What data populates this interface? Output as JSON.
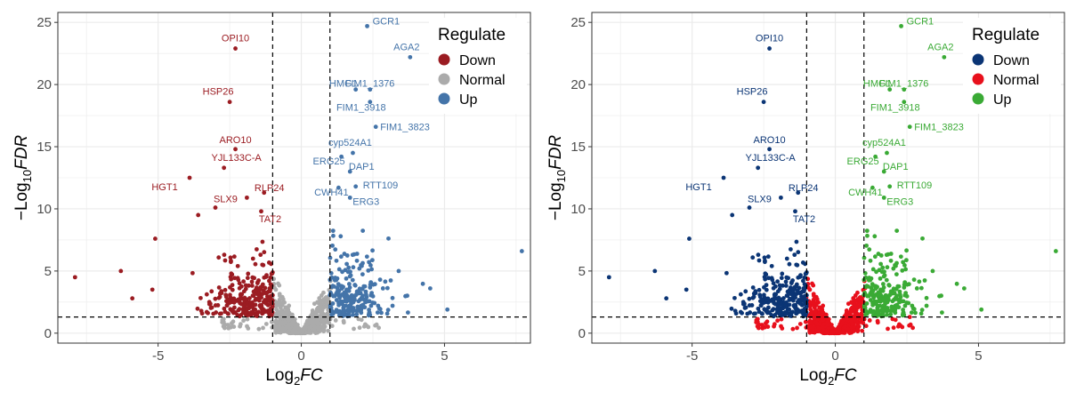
{
  "chart_data": [
    {
      "type": "scatter",
      "xlabel": "Log2FC",
      "ylabel": "-Log10FDR",
      "xlim": [
        -8.5,
        8.0
      ],
      "ylim": [
        -0.8,
        25.8
      ],
      "xticks": [
        "-5",
        "0",
        "5"
      ],
      "yticks": [
        "0",
        "5",
        "10",
        "15",
        "20",
        "25"
      ],
      "grid": true,
      "thresholds": {
        "fc": 1,
        "fdr_line": 1.3
      },
      "legend": {
        "title": "Regulate",
        "placement": "top-right",
        "entries": [
          {
            "label": "Down",
            "color": "#9B1C22"
          },
          {
            "label": "Normal",
            "color": "#ABABAB"
          },
          {
            "label": "Up",
            "color": "#4474A9"
          }
        ]
      },
      "genes": [
        {
          "name": "GCR1",
          "x": 2.3,
          "y": 24.7,
          "group": "Up"
        },
        {
          "name": "AGA2",
          "x": 3.8,
          "y": 22.2,
          "group": "Up"
        },
        {
          "name": "HMG1",
          "x": 1.9,
          "y": 19.6,
          "group": "Up"
        },
        {
          "name": "FIM1_1376",
          "x": 2.4,
          "y": 19.6,
          "group": "Up"
        },
        {
          "name": "FIM1_3918",
          "x": 2.4,
          "y": 18.6,
          "group": "Up"
        },
        {
          "name": "FIM1_3823",
          "x": 2.6,
          "y": 16.6,
          "group": "Up"
        },
        {
          "name": "cyp524A1",
          "x": 1.8,
          "y": 14.5,
          "group": "Up"
        },
        {
          "name": "ERG25",
          "x": 1.4,
          "y": 14.2,
          "group": "Up"
        },
        {
          "name": "DAP1",
          "x": 1.7,
          "y": 13.0,
          "group": "Up"
        },
        {
          "name": "RTT109",
          "x": 1.9,
          "y": 11.8,
          "group": "Up"
        },
        {
          "name": "CWH41",
          "x": 1.3,
          "y": 11.7,
          "group": "Up"
        },
        {
          "name": "ERG3",
          "x": 1.7,
          "y": 10.9,
          "group": "Up"
        },
        {
          "name": "OPI10",
          "x": -2.3,
          "y": 22.9,
          "group": "Down"
        },
        {
          "name": "HSP26",
          "x": -2.5,
          "y": 18.6,
          "group": "Down"
        },
        {
          "name": "ARO10",
          "x": -2.3,
          "y": 14.8,
          "group": "Down"
        },
        {
          "name": "YJL133C-A",
          "x": -2.7,
          "y": 13.3,
          "group": "Down"
        },
        {
          "name": "HGT1",
          "x": -3.9,
          "y": 12.5,
          "group": "Down"
        },
        {
          "name": "RLP24",
          "x": -1.3,
          "y": 11.3,
          "group": "Down"
        },
        {
          "name": "SLX9",
          "x": -1.9,
          "y": 10.9,
          "group": "Down"
        },
        {
          "name": "TAT2",
          "x": -1.4,
          "y": 9.8,
          "group": "Down"
        }
      ],
      "extra_points": [
        {
          "x": 7.7,
          "y": 6.6,
          "group": "Up"
        },
        {
          "x": 5.1,
          "y": 1.9,
          "group": "Up"
        },
        {
          "x": 3.4,
          "y": 5.0,
          "group": "Up"
        },
        {
          "x": 4.5,
          "y": 3.6,
          "group": "Up"
        },
        {
          "x": -7.9,
          "y": 4.5,
          "group": "Down"
        },
        {
          "x": -6.3,
          "y": 5.0,
          "group": "Down"
        },
        {
          "x": -5.9,
          "y": 2.8,
          "group": "Down"
        },
        {
          "x": -5.2,
          "y": 3.5,
          "group": "Down"
        },
        {
          "x": -5.1,
          "y": 7.6,
          "group": "Down"
        },
        {
          "x": -3.6,
          "y": 9.5,
          "group": "Down"
        },
        {
          "x": -3.0,
          "y": 10.1,
          "group": "Down"
        }
      ],
      "clouds": {
        "down_count": 260,
        "normal_count": 650,
        "up_count": 230
      }
    },
    {
      "type": "scatter",
      "xlabel": "Log2FC",
      "ylabel": "-Log10FDR",
      "xlim": [
        -8.5,
        8.0
      ],
      "ylim": [
        -0.8,
        25.8
      ],
      "xticks": [
        "-5",
        "0",
        "5"
      ],
      "yticks": [
        "0",
        "5",
        "10",
        "15",
        "20",
        "25"
      ],
      "grid": true,
      "thresholds": {
        "fc": 1,
        "fdr_line": 1.3
      },
      "legend": {
        "title": "Regulate",
        "placement": "top-right",
        "entries": [
          {
            "label": "Down",
            "color": "#0B3575"
          },
          {
            "label": "Normal",
            "color": "#E8101C"
          },
          {
            "label": "Up",
            "color": "#3AAA35"
          }
        ]
      },
      "genes": [
        {
          "name": "GCR1",
          "x": 2.3,
          "y": 24.7,
          "group": "Up"
        },
        {
          "name": "AGA2",
          "x": 3.8,
          "y": 22.2,
          "group": "Up"
        },
        {
          "name": "HMG1",
          "x": 1.9,
          "y": 19.6,
          "group": "Up"
        },
        {
          "name": "FIM1_1376",
          "x": 2.4,
          "y": 19.6,
          "group": "Up"
        },
        {
          "name": "FIM1_3918",
          "x": 2.4,
          "y": 18.6,
          "group": "Up"
        },
        {
          "name": "FIM1_3823",
          "x": 2.6,
          "y": 16.6,
          "group": "Up"
        },
        {
          "name": "cyp524A1",
          "x": 1.8,
          "y": 14.5,
          "group": "Up"
        },
        {
          "name": "ERG25",
          "x": 1.4,
          "y": 14.2,
          "group": "Up"
        },
        {
          "name": "DAP1",
          "x": 1.7,
          "y": 13.0,
          "group": "Up"
        },
        {
          "name": "RTT109",
          "x": 1.9,
          "y": 11.8,
          "group": "Up"
        },
        {
          "name": "CWH41",
          "x": 1.3,
          "y": 11.7,
          "group": "Up"
        },
        {
          "name": "ERG3",
          "x": 1.7,
          "y": 10.9,
          "group": "Up"
        },
        {
          "name": "OPI10",
          "x": -2.3,
          "y": 22.9,
          "group": "Down"
        },
        {
          "name": "HSP26",
          "x": -2.5,
          "y": 18.6,
          "group": "Down"
        },
        {
          "name": "ARO10",
          "x": -2.3,
          "y": 14.8,
          "group": "Down"
        },
        {
          "name": "YJL133C-A",
          "x": -2.7,
          "y": 13.3,
          "group": "Down"
        },
        {
          "name": "HGT1",
          "x": -3.9,
          "y": 12.5,
          "group": "Down"
        },
        {
          "name": "RLP24",
          "x": -1.3,
          "y": 11.3,
          "group": "Down"
        },
        {
          "name": "SLX9",
          "x": -1.9,
          "y": 10.9,
          "group": "Down"
        },
        {
          "name": "TAT2",
          "x": -1.4,
          "y": 9.8,
          "group": "Down"
        }
      ],
      "extra_points": [
        {
          "x": 7.7,
          "y": 6.6,
          "group": "Up"
        },
        {
          "x": 5.1,
          "y": 1.9,
          "group": "Up"
        },
        {
          "x": 3.4,
          "y": 5.0,
          "group": "Up"
        },
        {
          "x": 4.5,
          "y": 3.6,
          "group": "Up"
        },
        {
          "x": 2.6,
          "y": 1.3,
          "group": "Normal"
        },
        {
          "x": -7.9,
          "y": 4.5,
          "group": "Down"
        },
        {
          "x": -6.3,
          "y": 5.0,
          "group": "Down"
        },
        {
          "x": -5.9,
          "y": 2.8,
          "group": "Down"
        },
        {
          "x": -5.2,
          "y": 3.5,
          "group": "Down"
        },
        {
          "x": -5.1,
          "y": 7.6,
          "group": "Down"
        },
        {
          "x": -3.6,
          "y": 9.5,
          "group": "Down"
        },
        {
          "x": -3.0,
          "y": 10.1,
          "group": "Down"
        }
      ],
      "clouds": {
        "down_count": 260,
        "normal_count": 650,
        "up_count": 230
      }
    }
  ]
}
